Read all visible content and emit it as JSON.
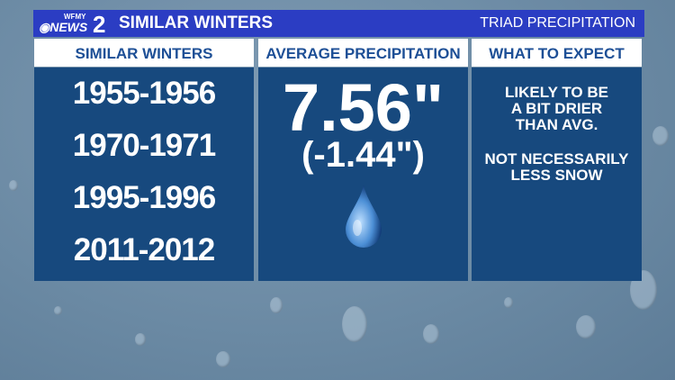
{
  "header": {
    "logo_text": "WFMY CBS NEWS 2",
    "title": "SIMILAR WINTERS",
    "region": "TRIAD PRECIPITATION",
    "bar_color": "#2b3dc3"
  },
  "columns": {
    "winters": {
      "heading": "SIMILAR WINTERS",
      "years": [
        "1955-1956",
        "1970-1971",
        "1995-1996",
        "2011-2012"
      ]
    },
    "precip": {
      "heading": "AVERAGE PRECIPITATION",
      "value": "7.56\"",
      "departure": "(-1.44\")",
      "icon": "water-drop-icon"
    },
    "expect": {
      "heading": "WHAT TO EXPECT",
      "lines1": [
        "LIKELY TO BE",
        "A BIT DRIER",
        "THAN AVG."
      ],
      "lines2": [
        "NOT NECESSARILY",
        "LESS SNOW"
      ]
    }
  },
  "colors": {
    "panel": "#17497e",
    "heading_text": "#1d4f96"
  }
}
